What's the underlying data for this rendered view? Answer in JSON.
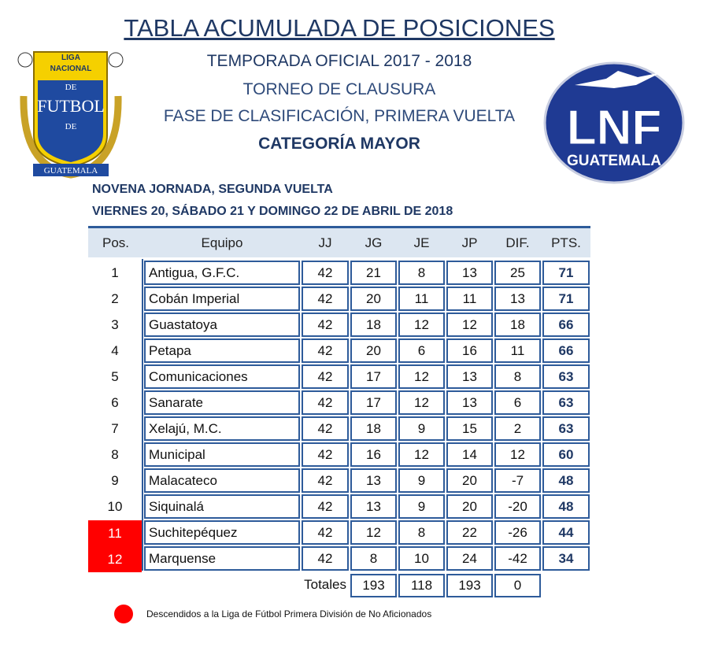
{
  "header": {
    "title": "TABLA ACUMULADA DE POSICIONES",
    "season": "TEMPORADA OFICIAL 2017 - 2018",
    "tournament": "TORNEO DE CLAUSURA",
    "phase": "FASE DE CLASIFICACIÓN, PRIMERA VUELTA",
    "category": "CATEGORÍA MAYOR",
    "matchday": "NOVENA JORNADA, SEGUNDA VUELTA",
    "dates": "VIERNES 20, SÁBADO 21 Y DOMINGO 22 DE ABRIL DE 2018"
  },
  "logos": {
    "left": [
      "LIGA",
      "NACIONAL",
      "DE",
      "FUTBOL",
      "DE",
      "GUATEMALA"
    ],
    "right": [
      "LNF",
      "GUATEMALA"
    ]
  },
  "table": {
    "columns": [
      "Pos.",
      "Equipo",
      "JJ",
      "JG",
      "JE",
      "JP",
      "DIF.",
      "PTS."
    ],
    "rows": [
      [
        1,
        "Antigua, G.F.C.",
        42,
        21,
        8,
        13,
        25,
        71
      ],
      [
        2,
        "Cobán Imperial",
        42,
        20,
        11,
        11,
        13,
        71
      ],
      [
        3,
        "Guastatoya",
        42,
        18,
        12,
        12,
        18,
        66
      ],
      [
        4,
        "Petapa",
        42,
        20,
        6,
        16,
        11,
        66
      ],
      [
        5,
        "Comunicaciones",
        42,
        17,
        12,
        13,
        8,
        63
      ],
      [
        6,
        "Sanarate",
        42,
        17,
        12,
        13,
        6,
        63
      ],
      [
        7,
        "Xelajú, M.C.",
        42,
        18,
        9,
        15,
        2,
        63
      ],
      [
        8,
        "Municipal",
        42,
        16,
        12,
        14,
        12,
        60
      ],
      [
        9,
        "Malacateco",
        42,
        13,
        9,
        20,
        -7,
        48
      ],
      [
        10,
        "Siquinalá",
        42,
        13,
        9,
        20,
        -20,
        48
      ],
      [
        11,
        "Suchitepéquez",
        42,
        12,
        8,
        22,
        -26,
        44
      ],
      [
        12,
        "Marquense",
        42,
        8,
        10,
        24,
        -42,
        34
      ]
    ],
    "relegated": [
      false,
      false,
      false,
      false,
      false,
      false,
      false,
      false,
      false,
      false,
      true,
      true
    ],
    "totals": {
      "label": "Totales",
      "values": [
        193,
        118,
        193,
        0
      ]
    }
  },
  "legend": {
    "color": "#ff0000",
    "text": "Descendidos a la Liga de Fútbol Primera División de No Aficionados"
  }
}
